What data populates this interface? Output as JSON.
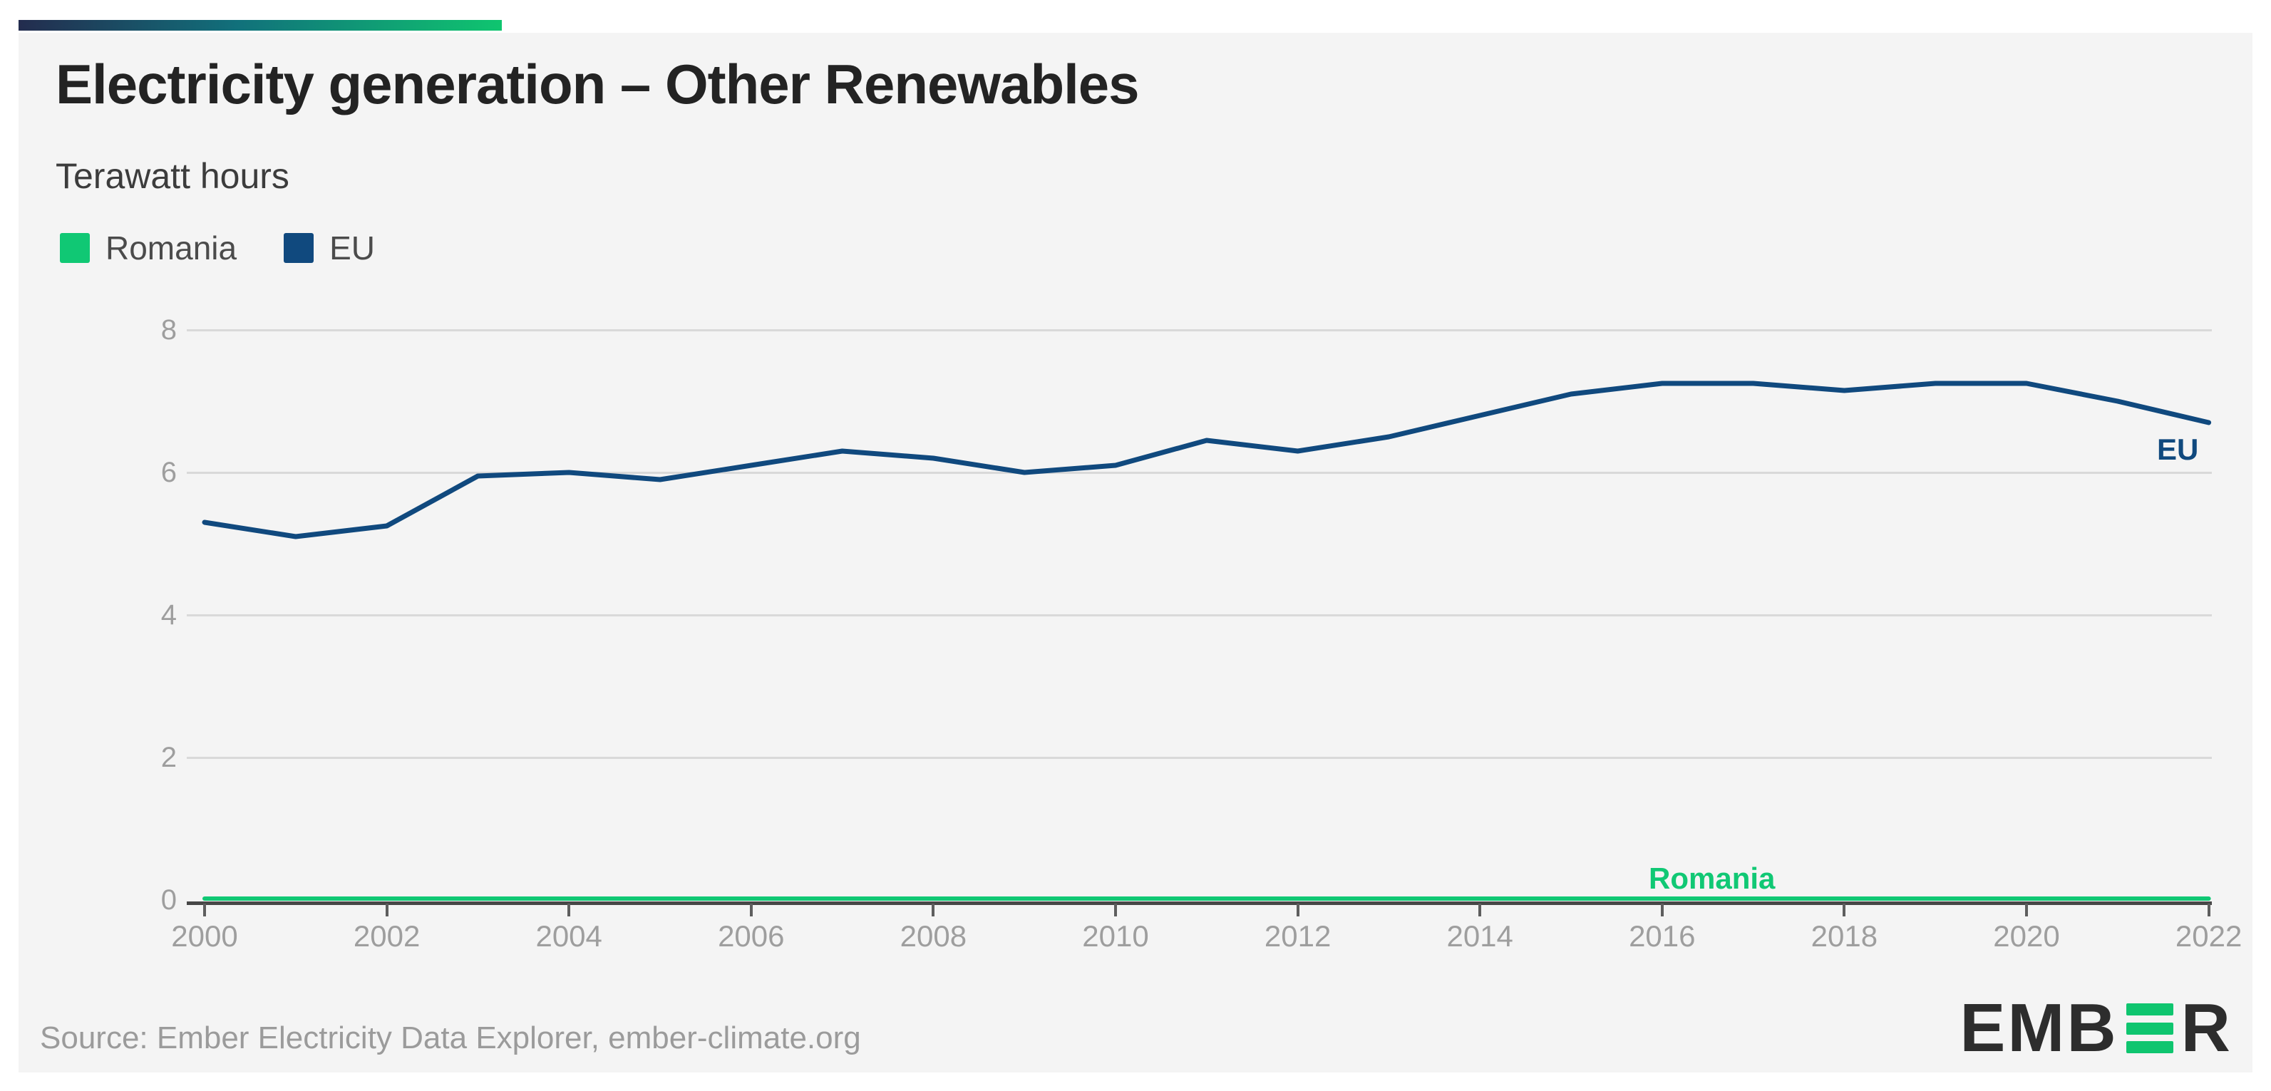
{
  "header": {
    "title": "Electricity generation – Other Renewables",
    "subtitle": "Terawatt hours"
  },
  "legend": [
    {
      "label": "Romania",
      "color": "#10c874"
    },
    {
      "label": "EU",
      "color": "#10497e"
    }
  ],
  "colors": {
    "accent_gradient_start": "#232c4e",
    "accent_gradient_mid": "#11707b",
    "accent_gradient_end": "#0fc56f",
    "panel_background": "#f4f4f4",
    "gridline": "#d9d9d9",
    "axis": "#474747",
    "tick_text": "#9e9e9e",
    "romania_green": "#10c874",
    "eu_navy": "#10497e"
  },
  "chart_data": {
    "type": "line",
    "title": "Electricity generation – Other Renewables",
    "subtitle": "Terawatt hours",
    "xlabel": "",
    "ylabel": "Terawatt hours",
    "xlim": [
      2000,
      2022
    ],
    "ylim": [
      0,
      8
    ],
    "grid": "horizontal",
    "legend_position": "top-left",
    "x": [
      2000,
      2001,
      2002,
      2003,
      2004,
      2005,
      2006,
      2007,
      2008,
      2009,
      2010,
      2011,
      2012,
      2013,
      2014,
      2015,
      2016,
      2017,
      2018,
      2019,
      2020,
      2021,
      2022
    ],
    "xticks": [
      2000,
      2002,
      2004,
      2006,
      2008,
      2010,
      2012,
      2014,
      2016,
      2018,
      2020,
      2022
    ],
    "yticks": [
      0,
      2,
      4,
      6,
      8
    ],
    "series": [
      {
        "name": "Romania",
        "color": "#10c874",
        "values": [
          0,
          0,
          0,
          0,
          0,
          0,
          0,
          0,
          0,
          0,
          0,
          0,
          0,
          0,
          0,
          0,
          0,
          0,
          0,
          0,
          0,
          0,
          0
        ]
      },
      {
        "name": "EU",
        "color": "#10497e",
        "values": [
          5.3,
          5.1,
          5.25,
          5.95,
          6.0,
          5.9,
          6.1,
          6.3,
          6.2,
          6.0,
          6.1,
          6.45,
          6.3,
          6.5,
          6.8,
          7.1,
          7.25,
          7.25,
          7.15,
          7.25,
          7.25,
          7.0,
          6.7
        ]
      }
    ]
  },
  "footer": {
    "source": "Source: Ember Electricity Data Explorer, ember-climate.org",
    "logo": {
      "prefix": "EMB",
      "suffix": "R"
    }
  }
}
